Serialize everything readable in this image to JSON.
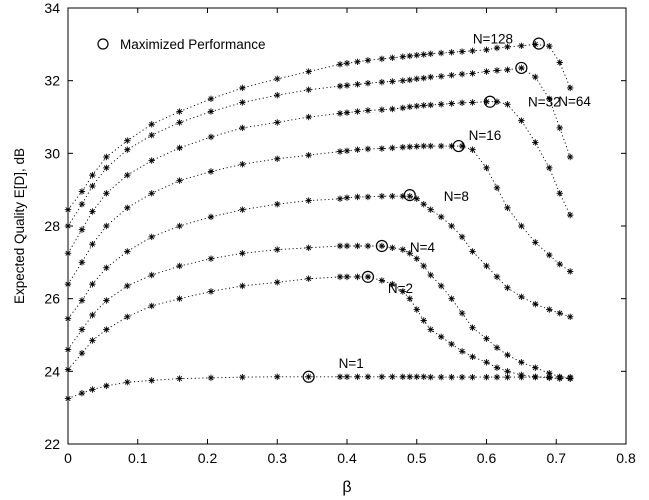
{
  "chart_data": {
    "type": "line",
    "title": "",
    "xlabel": "β",
    "ylabel": "Expected Quality E[D], dB",
    "xlim": [
      0,
      0.8
    ],
    "ylim": [
      22,
      34
    ],
    "xticks": [
      "0",
      "0.1",
      "0.2",
      "0.3",
      "0.4",
      "0.5",
      "0.6",
      "0.7",
      "0.8"
    ],
    "yticks": [
      "22",
      "24",
      "26",
      "28",
      "30",
      "32",
      "34"
    ],
    "grid": false,
    "legend": {
      "position": "top-left",
      "entries": [
        "Maximized Performance"
      ]
    },
    "marker": "asterisk",
    "line_style": "dotted",
    "series": [
      {
        "name": "N=1",
        "x": [
          0,
          0.02,
          0.035,
          0.055,
          0.085,
          0.12,
          0.16,
          0.205,
          0.25,
          0.3,
          0.345,
          0.39,
          0.4,
          0.415,
          0.43,
          0.45,
          0.465,
          0.48,
          0.49,
          0.5,
          0.51,
          0.52,
          0.535,
          0.55,
          0.565,
          0.58,
          0.6,
          0.615,
          0.63,
          0.65,
          0.67,
          0.69,
          0.705,
          0.72
        ],
        "y": [
          23.25,
          23.4,
          23.5,
          23.6,
          23.7,
          23.75,
          23.8,
          23.82,
          23.84,
          23.85,
          23.85,
          23.85,
          23.85,
          23.85,
          23.85,
          23.85,
          23.85,
          23.85,
          23.85,
          23.85,
          23.85,
          23.84,
          23.84,
          23.84,
          23.84,
          23.84,
          23.84,
          23.84,
          23.84,
          23.84,
          23.84,
          23.84,
          23.84,
          23.84
        ],
        "optimum": [
          0.345,
          23.85
        ]
      },
      {
        "name": "N=2",
        "x": [
          0,
          0.02,
          0.035,
          0.055,
          0.085,
          0.12,
          0.16,
          0.205,
          0.25,
          0.3,
          0.345,
          0.39,
          0.4,
          0.415,
          0.43,
          0.45,
          0.465,
          0.48,
          0.49,
          0.5,
          0.51,
          0.52,
          0.535,
          0.55,
          0.565,
          0.58,
          0.6,
          0.615,
          0.63,
          0.65,
          0.67,
          0.69,
          0.705,
          0.72
        ],
        "y": [
          24.05,
          24.5,
          24.85,
          25.15,
          25.5,
          25.8,
          26.0,
          26.2,
          26.35,
          26.45,
          26.55,
          26.6,
          26.6,
          26.6,
          26.6,
          26.5,
          26.4,
          26.2,
          26.0,
          25.7,
          25.4,
          25.15,
          24.95,
          24.75,
          24.55,
          24.4,
          24.25,
          24.1,
          24.0,
          23.9,
          23.85,
          23.82,
          23.8,
          23.8
        ],
        "optimum": [
          0.43,
          26.6
        ]
      },
      {
        "name": "N=4",
        "x": [
          0,
          0.02,
          0.035,
          0.055,
          0.085,
          0.12,
          0.16,
          0.205,
          0.25,
          0.3,
          0.345,
          0.39,
          0.4,
          0.415,
          0.43,
          0.45,
          0.465,
          0.48,
          0.49,
          0.5,
          0.51,
          0.52,
          0.535,
          0.55,
          0.565,
          0.58,
          0.6,
          0.615,
          0.63,
          0.65,
          0.67,
          0.69,
          0.705,
          0.72
        ],
        "y": [
          24.6,
          25.15,
          25.55,
          25.95,
          26.35,
          26.65,
          26.9,
          27.1,
          27.25,
          27.35,
          27.4,
          27.45,
          27.45,
          27.45,
          27.45,
          27.45,
          27.4,
          27.35,
          27.25,
          27.1,
          26.9,
          26.65,
          26.35,
          26.0,
          25.6,
          25.2,
          24.9,
          24.65,
          24.45,
          24.25,
          24.1,
          23.95,
          23.85,
          23.8
        ],
        "optimum": [
          0.45,
          27.45
        ]
      },
      {
        "name": "N=8",
        "x": [
          0,
          0.02,
          0.035,
          0.055,
          0.085,
          0.12,
          0.16,
          0.205,
          0.25,
          0.3,
          0.345,
          0.39,
          0.4,
          0.415,
          0.43,
          0.45,
          0.465,
          0.48,
          0.49,
          0.5,
          0.51,
          0.52,
          0.535,
          0.55,
          0.565,
          0.58,
          0.6,
          0.615,
          0.63,
          0.65,
          0.67,
          0.69,
          0.705,
          0.72
        ],
        "y": [
          25.45,
          25.95,
          26.4,
          26.85,
          27.3,
          27.7,
          28.0,
          28.25,
          28.45,
          28.6,
          28.7,
          28.75,
          28.78,
          28.8,
          28.8,
          28.82,
          28.82,
          28.82,
          28.82,
          28.75,
          28.6,
          28.45,
          28.25,
          28.0,
          27.7,
          27.3,
          26.9,
          26.6,
          26.3,
          26.05,
          25.85,
          25.7,
          25.6,
          25.5
        ],
        "optimum": [
          0.49,
          28.85
        ]
      },
      {
        "name": "N=16",
        "x": [
          0,
          0.02,
          0.035,
          0.055,
          0.085,
          0.12,
          0.16,
          0.205,
          0.25,
          0.3,
          0.345,
          0.39,
          0.4,
          0.415,
          0.43,
          0.45,
          0.465,
          0.48,
          0.49,
          0.5,
          0.51,
          0.52,
          0.535,
          0.55,
          0.565,
          0.58,
          0.6,
          0.615,
          0.63,
          0.65,
          0.67,
          0.69,
          0.705,
          0.72
        ],
        "y": [
          26.4,
          27.0,
          27.5,
          28.0,
          28.5,
          28.9,
          29.25,
          29.5,
          29.7,
          29.85,
          29.95,
          30.05,
          30.07,
          30.1,
          30.12,
          30.13,
          30.15,
          30.17,
          30.18,
          30.19,
          30.2,
          30.2,
          30.2,
          30.2,
          30.2,
          30.1,
          29.6,
          29.05,
          28.5,
          28.0,
          27.55,
          27.2,
          26.95,
          26.75
        ],
        "optimum": [
          0.56,
          30.2
        ]
      },
      {
        "name": "N=32",
        "x": [
          0,
          0.02,
          0.035,
          0.055,
          0.085,
          0.12,
          0.16,
          0.205,
          0.25,
          0.3,
          0.345,
          0.39,
          0.4,
          0.415,
          0.43,
          0.45,
          0.465,
          0.48,
          0.49,
          0.5,
          0.51,
          0.52,
          0.535,
          0.55,
          0.565,
          0.58,
          0.6,
          0.615,
          0.63,
          0.65,
          0.67,
          0.69,
          0.705,
          0.72
        ],
        "y": [
          27.25,
          27.9,
          28.4,
          28.9,
          29.4,
          29.8,
          30.15,
          30.45,
          30.7,
          30.85,
          31.0,
          31.1,
          31.12,
          31.15,
          31.18,
          31.2,
          31.22,
          31.25,
          31.28,
          31.3,
          31.32,
          31.33,
          31.35,
          31.37,
          31.39,
          31.4,
          31.42,
          31.42,
          31.35,
          30.9,
          30.3,
          29.6,
          28.9,
          28.3
        ],
        "optimum": [
          0.605,
          31.42
        ]
      },
      {
        "name": "N=64",
        "x": [
          0,
          0.02,
          0.035,
          0.055,
          0.085,
          0.12,
          0.16,
          0.205,
          0.25,
          0.3,
          0.345,
          0.39,
          0.4,
          0.415,
          0.43,
          0.45,
          0.465,
          0.48,
          0.49,
          0.5,
          0.51,
          0.52,
          0.535,
          0.55,
          0.565,
          0.58,
          0.6,
          0.615,
          0.63,
          0.65,
          0.67,
          0.69,
          0.705,
          0.72
        ],
        "y": [
          28.0,
          28.6,
          29.1,
          29.6,
          30.1,
          30.5,
          30.85,
          31.15,
          31.4,
          31.6,
          31.75,
          31.85,
          31.87,
          31.9,
          31.93,
          31.96,
          31.98,
          32.0,
          32.02,
          32.05,
          32.07,
          32.1,
          32.12,
          32.15,
          32.18,
          32.2,
          32.25,
          32.28,
          32.3,
          32.35,
          32.1,
          31.5,
          30.7,
          29.9
        ],
        "optimum": [
          0.65,
          32.35
        ]
      },
      {
        "name": "N=128",
        "x": [
          0,
          0.02,
          0.035,
          0.055,
          0.085,
          0.12,
          0.16,
          0.205,
          0.25,
          0.3,
          0.345,
          0.39,
          0.4,
          0.415,
          0.43,
          0.45,
          0.465,
          0.48,
          0.49,
          0.5,
          0.51,
          0.52,
          0.535,
          0.55,
          0.565,
          0.58,
          0.6,
          0.615,
          0.63,
          0.65,
          0.67,
          0.69,
          0.705,
          0.72
        ],
        "y": [
          28.45,
          28.95,
          29.4,
          29.9,
          30.35,
          30.8,
          31.15,
          31.5,
          31.8,
          32.05,
          32.25,
          32.45,
          32.48,
          32.52,
          32.56,
          32.6,
          32.63,
          32.66,
          32.68,
          32.7,
          32.72,
          32.74,
          32.76,
          32.78,
          32.8,
          32.82,
          32.85,
          32.9,
          32.93,
          32.96,
          33.0,
          32.95,
          32.5,
          31.8
        ],
        "optimum": [
          0.675,
          33.02
        ]
      }
    ]
  }
}
